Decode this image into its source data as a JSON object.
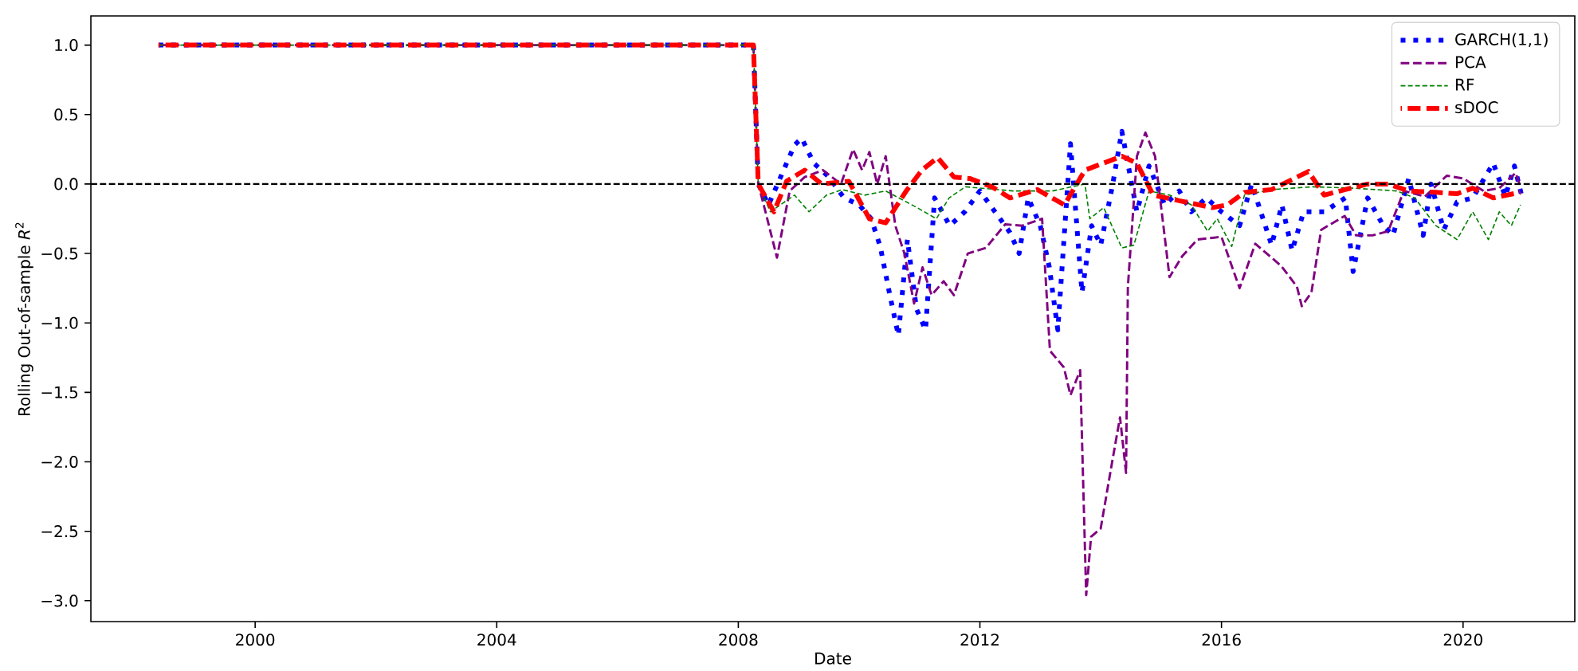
{
  "chart_data": {
    "type": "line",
    "xlabel": "Date",
    "ylabel": "Rolling Out-of-sample *R*$^{2}$",
    "xlim": [
      1997.28,
      2021.85
    ],
    "ylim": [
      -3.15,
      1.21
    ],
    "xticks": [
      2000,
      2004,
      2008,
      2012,
      2016,
      2020
    ],
    "yticks": [
      {
        "value": -3,
        "label": "−3.0"
      },
      {
        "value": -2.5,
        "label": "−2.5"
      },
      {
        "value": -2,
        "label": "−2.0"
      },
      {
        "value": -1.5,
        "label": "−1.5"
      },
      {
        "value": -1,
        "label": "−1.0"
      },
      {
        "value": -0.5,
        "label": "−0.5"
      },
      {
        "value": 0,
        "label": "0.0"
      },
      {
        "value": 0.5,
        "label": "0.5"
      },
      {
        "value": 1,
        "label": "1.0"
      }
    ],
    "grid": false,
    "legend": "top right",
    "ref_lines": [
      {
        "axis": "y",
        "value": 0,
        "color": "#000000",
        "line_style": "dashed"
      }
    ],
    "series": [
      {
        "name": "GARCH(1,1)",
        "color": "#0000ff",
        "line_style": "dotted",
        "x": [
          1998.4,
          2008.25,
          2008.33,
          2008.5,
          2008.75,
          2008.93,
          2009.05,
          2009.25,
          2009.5,
          2009.75,
          2010.0,
          2010.2,
          2010.35,
          2010.5,
          2010.65,
          2010.8,
          2010.95,
          2011.1,
          2011.25,
          2011.5,
          2011.75,
          2012.0,
          2012.25,
          2012.5,
          2012.65,
          2012.8,
          2013.0,
          2013.15,
          2013.29,
          2013.5,
          2013.69,
          2013.85,
          2014.0,
          2014.2,
          2014.35,
          2014.6,
          2014.8,
          2015.06,
          2015.3,
          2015.5,
          2015.75,
          2016.0,
          2016.3,
          2016.5,
          2016.83,
          2017.0,
          2017.17,
          2017.36,
          2017.7,
          2018.05,
          2018.18,
          2018.42,
          2018.68,
          2018.84,
          2019.1,
          2019.34,
          2019.47,
          2019.68,
          2019.9,
          2020.16,
          2020.5,
          2020.7,
          2020.85,
          2020.98
        ],
        "values": [
          1.0,
          1.0,
          0.0,
          -0.15,
          0.1,
          0.28,
          0.33,
          0.15,
          0.05,
          -0.1,
          -0.15,
          -0.25,
          -0.45,
          -0.78,
          -1.09,
          -0.4,
          -0.9,
          -1.05,
          -0.1,
          -0.3,
          -0.2,
          -0.05,
          -0.2,
          -0.35,
          -0.5,
          -0.1,
          -0.3,
          -0.6,
          -1.05,
          0.29,
          -0.78,
          -0.3,
          -0.44,
          0.0,
          0.38,
          -0.2,
          0.13,
          -0.15,
          -0.05,
          -0.2,
          -0.1,
          -0.2,
          -0.3,
          0.0,
          -0.44,
          -0.15,
          -0.48,
          -0.2,
          -0.2,
          -0.1,
          -0.63,
          -0.1,
          -0.3,
          -0.37,
          0.04,
          -0.37,
          0.0,
          -0.33,
          -0.13,
          -0.1,
          0.15,
          -0.09,
          0.13,
          -0.1
        ]
      },
      {
        "name": "PCA",
        "color": "#800080",
        "line_style": "dashed",
        "x": [
          1998.4,
          2008.25,
          2008.33,
          2008.45,
          2008.64,
          2008.85,
          2009.1,
          2009.4,
          2009.7,
          2009.9,
          2010.05,
          2010.17,
          2010.3,
          2010.44,
          2010.6,
          2010.75,
          2010.91,
          2011.05,
          2011.2,
          2011.4,
          2011.57,
          2011.8,
          2012.1,
          2012.42,
          2012.7,
          2013.03,
          2013.16,
          2013.39,
          2013.5,
          2013.66,
          2013.76,
          2013.84,
          2014.0,
          2014.19,
          2014.32,
          2014.42,
          2014.45,
          2014.6,
          2014.74,
          2014.9,
          2015.14,
          2015.35,
          2015.6,
          2016.0,
          2016.3,
          2016.56,
          2016.99,
          2017.25,
          2017.33,
          2017.49,
          2017.65,
          2018.04,
          2018.23,
          2018.5,
          2018.76,
          2019.02,
          2019.37,
          2019.73,
          2020.0,
          2020.34,
          2020.6,
          2020.87,
          2020.95
        ],
        "values": [
          1.0,
          1.0,
          0.0,
          -0.2,
          -0.53,
          -0.05,
          0.05,
          0.1,
          0.0,
          0.25,
          0.1,
          0.23,
          0.0,
          0.2,
          -0.3,
          -0.5,
          -0.86,
          -0.6,
          -0.8,
          -0.7,
          -0.8,
          -0.5,
          -0.46,
          -0.29,
          -0.3,
          -0.25,
          -1.2,
          -1.32,
          -1.52,
          -1.34,
          -2.96,
          -2.54,
          -2.48,
          -2.0,
          -1.68,
          -2.08,
          -0.74,
          0.2,
          0.37,
          0.2,
          -0.67,
          -0.52,
          -0.4,
          -0.38,
          -0.75,
          -0.43,
          -0.59,
          -0.74,
          -0.88,
          -0.78,
          -0.33,
          -0.23,
          -0.37,
          -0.37,
          -0.34,
          -0.05,
          -0.09,
          0.06,
          0.04,
          -0.05,
          -0.03,
          0.08,
          -0.02
        ]
      },
      {
        "name": "RF",
        "color": "#008000",
        "line_style": "dashed",
        "x": [
          1998.4,
          2008.25,
          2008.33,
          2008.53,
          2008.93,
          2009.17,
          2009.46,
          2009.72,
          2010.09,
          2010.44,
          2010.96,
          2011.28,
          2011.49,
          2011.76,
          2012.55,
          2013.2,
          2013.74,
          2013.82,
          2014.05,
          2014.35,
          2014.55,
          2014.8,
          2015.14,
          2015.5,
          2015.77,
          2015.93,
          2016.17,
          2016.38,
          2016.83,
          2017.5,
          2018.2,
          2018.9,
          2019.2,
          2019.55,
          2019.9,
          2020.16,
          2020.42,
          2020.6,
          2020.8,
          2020.95
        ],
        "values": [
          1.0,
          1.0,
          0.0,
          -0.2,
          -0.08,
          -0.2,
          -0.08,
          -0.04,
          -0.08,
          -0.05,
          -0.17,
          -0.25,
          -0.1,
          -0.02,
          -0.05,
          -0.05,
          0.0,
          -0.25,
          -0.17,
          -0.46,
          -0.44,
          -0.05,
          -0.08,
          -0.15,
          -0.34,
          -0.25,
          -0.45,
          -0.08,
          -0.04,
          -0.02,
          -0.03,
          -0.05,
          -0.1,
          -0.3,
          -0.4,
          -0.2,
          -0.4,
          -0.2,
          -0.3,
          -0.15
        ]
      },
      {
        "name": "sDOC",
        "color": "#ff0000",
        "line_style": "dashed",
        "x": [
          1998.4,
          2008.25,
          2008.33,
          2008.59,
          2008.8,
          2009.1,
          2009.38,
          2009.83,
          2010.17,
          2010.44,
          2010.78,
          2011.04,
          2011.3,
          2011.57,
          2011.83,
          2012.2,
          2012.5,
          2012.95,
          2013.4,
          2013.74,
          2014.35,
          2014.6,
          2014.87,
          2015.3,
          2015.85,
          2016.1,
          2016.38,
          2016.83,
          2017.44,
          2017.7,
          2018.05,
          2018.42,
          2018.76,
          2019.1,
          2019.55,
          2019.9,
          2020.16,
          2020.5,
          2020.95
        ],
        "values": [
          1.0,
          1.0,
          0.0,
          -0.2,
          0.02,
          0.1,
          0.0,
          0.02,
          -0.25,
          -0.28,
          -0.05,
          0.1,
          0.19,
          0.05,
          0.04,
          -0.02,
          -0.1,
          -0.04,
          -0.15,
          0.1,
          0.2,
          0.15,
          -0.08,
          -0.12,
          -0.17,
          -0.15,
          -0.06,
          -0.04,
          0.09,
          -0.08,
          -0.04,
          0.0,
          0.0,
          -0.05,
          -0.06,
          -0.07,
          -0.03,
          -0.1,
          -0.06
        ]
      }
    ]
  }
}
